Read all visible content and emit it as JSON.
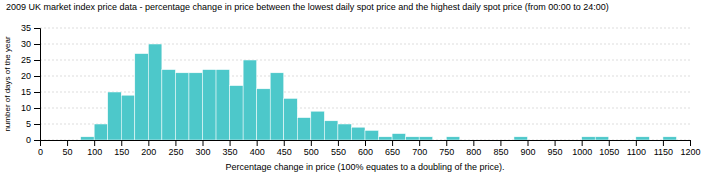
{
  "chart_data": {
    "type": "histogram",
    "title": "2009 UK market index price data - percentage change in price between the lowest daily spot price and the highest daily spot price (from 00:00 to 24:00)",
    "xlabel": "Percentage change in price (100% equates to a doubling of the price).",
    "ylabel": "number of days of the year",
    "bins": [
      75,
      100,
      125,
      150,
      175,
      200,
      225,
      250,
      275,
      300,
      325,
      350,
      375,
      400,
      425,
      450,
      475,
      500,
      525,
      550,
      575,
      600,
      625,
      650,
      675,
      700,
      725,
      750,
      775,
      800,
      825,
      850,
      875,
      900,
      925,
      950,
      975,
      1000,
      1025,
      1050,
      1075,
      1100,
      1125,
      1150,
      1175,
      1200
    ],
    "values": [
      1,
      5,
      15,
      14,
      27,
      30,
      22,
      21,
      21,
      22,
      22,
      17,
      25,
      16,
      21,
      13,
      7,
      9,
      6,
      5,
      4,
      3,
      1,
      2,
      1,
      1,
      0,
      1,
      0,
      0,
      0,
      0,
      1,
      0,
      0,
      0,
      0,
      1,
      1,
      0,
      0,
      1,
      0,
      1,
      0
    ],
    "color": "#4dc8ca",
    "xlim": [
      0,
      1200
    ],
    "ylim": [
      0,
      35
    ],
    "xticks": [
      0,
      50,
      100,
      150,
      200,
      250,
      300,
      350,
      400,
      450,
      500,
      550,
      600,
      650,
      700,
      750,
      800,
      850,
      900,
      950,
      1000,
      1050,
      1100,
      1150,
      1200
    ],
    "yticks": [
      0,
      5,
      10,
      15,
      20,
      25,
      30,
      35
    ],
    "grid": true
  }
}
